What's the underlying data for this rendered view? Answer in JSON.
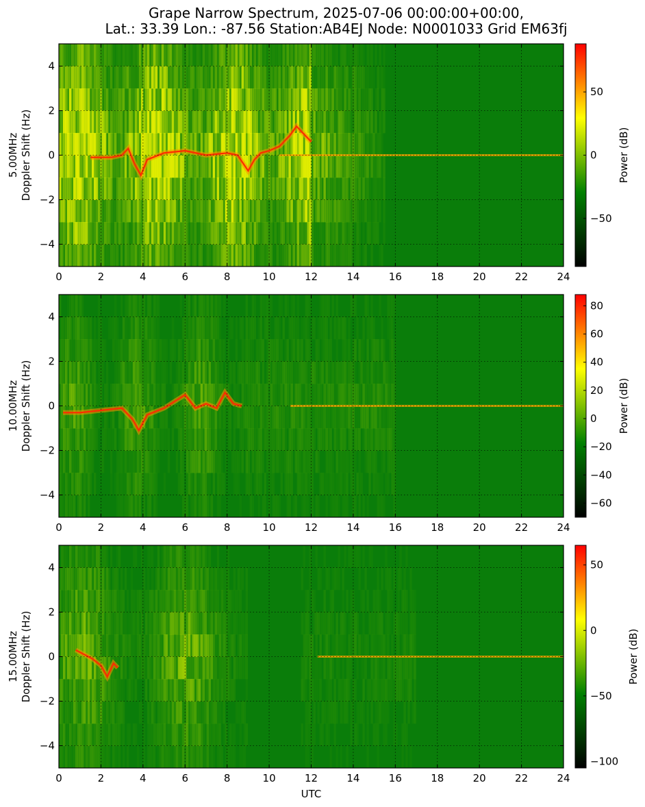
{
  "figure": {
    "title_line1": "Grape Narrow Spectrum, 2025-07-06 00:00:00+00:00,",
    "title_line2": "Lat.: 33.39 Lon.: -87.56 Station:AB4EJ Node: N0001033 Grid EM63fj",
    "xlabel": "UTC"
  },
  "colormap": [
    "#000000",
    "#008000",
    "#FFFF00",
    "#FF0000"
  ],
  "chart_data": [
    {
      "type": "heatmap",
      "panel_label": "5.00MHz",
      "ylabel": "Doppler Shift (Hz)",
      "colorbar_label": "Power (dB)",
      "xlim": [
        0,
        24
      ],
      "ylim": [
        -5,
        5
      ],
      "x_ticks": [
        0,
        2,
        4,
        6,
        8,
        10,
        12,
        14,
        16,
        18,
        20,
        22,
        24
      ],
      "y_ticks": [
        -4,
        -2,
        0,
        2,
        4
      ],
      "grid": true,
      "clim": [
        -88,
        88
      ],
      "colorbar_ticks": [
        -50,
        0,
        50
      ],
      "carrier_trace": {
        "x": [
          1.5,
          2.5,
          3.0,
          3.3,
          3.6,
          3.9,
          4.2,
          5.0,
          6.0,
          7.0,
          8.0,
          8.5,
          9.0,
          9.3,
          9.6,
          10.0,
          10.5,
          11.0,
          11.3,
          11.6,
          12.0
        ],
        "y": [
          -0.1,
          -0.1,
          0.0,
          0.3,
          -0.4,
          -0.9,
          -0.2,
          0.1,
          0.2,
          0.0,
          0.1,
          0.0,
          -0.7,
          -0.2,
          0.1,
          0.2,
          0.4,
          0.9,
          1.3,
          1.0,
          0.6
        ]
      },
      "steady_carrier": {
        "x_start": 10.5,
        "x_end": 24,
        "y": 0
      }
    },
    {
      "type": "heatmap",
      "panel_label": "10.00MHz",
      "ylabel": "Doppler Shift (Hz)",
      "colorbar_label": "Power (dB)",
      "xlim": [
        0,
        24
      ],
      "ylim": [
        -5,
        5
      ],
      "x_ticks": [
        0,
        2,
        4,
        6,
        8,
        10,
        12,
        14,
        16,
        18,
        20,
        22,
        24
      ],
      "y_ticks": [
        -4,
        -2,
        0,
        2,
        4
      ],
      "grid": true,
      "clim": [
        -70,
        88
      ],
      "colorbar_ticks": [
        -60,
        -40,
        -20,
        0,
        20,
        40,
        60,
        80
      ],
      "carrier_trace": {
        "x": [
          0.2,
          1.0,
          2.0,
          3.0,
          3.5,
          3.8,
          4.2,
          5.0,
          5.5,
          6.0,
          6.5,
          7.0,
          7.5,
          7.9,
          8.3,
          8.7
        ],
        "y": [
          -0.3,
          -0.3,
          -0.2,
          -0.1,
          -0.6,
          -1.1,
          -0.4,
          -0.1,
          0.2,
          0.5,
          -0.1,
          0.1,
          -0.1,
          0.6,
          0.1,
          0.0
        ]
      },
      "steady_carrier": {
        "x_start": 11,
        "x_end": 24,
        "y": 0
      }
    },
    {
      "type": "heatmap",
      "panel_label": "15.00MHz",
      "ylabel": "Doppler Shift (Hz)",
      "colorbar_label": "Power (dB)",
      "xlim": [
        0,
        24
      ],
      "ylim": [
        -5,
        5
      ],
      "x_ticks": [
        0,
        2,
        4,
        6,
        8,
        10,
        12,
        14,
        16,
        18,
        20,
        22,
        24
      ],
      "y_ticks": [
        -4,
        -2,
        0,
        2,
        4
      ],
      "grid": true,
      "clim": [
        -105,
        65
      ],
      "colorbar_ticks": [
        -100,
        -50,
        0,
        50
      ],
      "carrier_trace": {
        "x": [
          0.8,
          1.2,
          1.6,
          2.0,
          2.3,
          2.6,
          2.8
        ],
        "y": [
          0.3,
          0.1,
          -0.1,
          -0.4,
          -0.9,
          -0.3,
          -0.5
        ]
      },
      "steady_carrier": {
        "x_start": 12.3,
        "x_end": 24,
        "y": 0
      }
    }
  ]
}
